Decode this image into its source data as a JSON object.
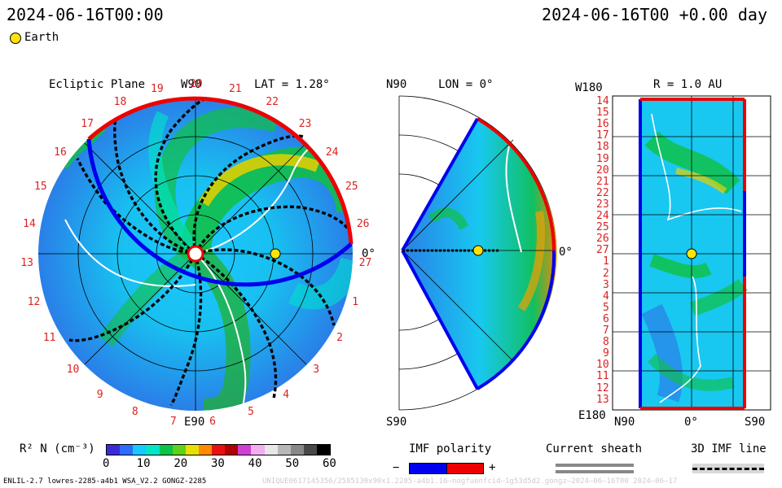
{
  "header": {
    "time_left": "2024-06-16T00:00",
    "time_right": "2024-06-16T00 +0.00 day"
  },
  "legend": {
    "earth_label": "Earth",
    "earth_color": "#ffe400"
  },
  "ecliptic": {
    "title": "Ecliptic Plane",
    "top_label": "W90",
    "bottom_label": "E90",
    "right_label": "0°",
    "lat_label": "LAT = 1.28°",
    "rotation_numbers": [
      "20",
      "21",
      "22",
      "23",
      "24",
      "25",
      "26",
      "27",
      "1",
      "2",
      "3",
      "4",
      "5",
      "6",
      "7",
      "8",
      "9",
      "10",
      "11",
      "12",
      "13",
      "14",
      "15",
      "16",
      "17",
      "18",
      "19"
    ]
  },
  "meridional": {
    "top_label": "N90",
    "bottom_label": "S90",
    "lon_label": "LON = 0°",
    "right_label": "0°"
  },
  "radial_map": {
    "top_left_label": "W180",
    "bottom_left_label": "E180",
    "title": "R = 1.0 AU",
    "x_labels": [
      "N90",
      "0°",
      "S90"
    ],
    "y_labels": [
      "14",
      "15",
      "16",
      "17",
      "18",
      "19",
      "20",
      "21",
      "22",
      "23",
      "24",
      "25",
      "26",
      "27",
      "1",
      "2",
      "3",
      "4",
      "5",
      "6",
      "7",
      "8",
      "9",
      "10",
      "11",
      "12",
      "13"
    ]
  },
  "colorbar": {
    "label": "R² N (cm⁻³)",
    "ticks": [
      "0",
      "10",
      "20",
      "30",
      "40",
      "50",
      "60"
    ],
    "colors": [
      "#3a2bd9",
      "#2b6cff",
      "#18c8ff",
      "#00e6c8",
      "#08c448",
      "#60d018",
      "#e8e000",
      "#ff8a00",
      "#e81010",
      "#b00000",
      "#d040d0",
      "#f0b0f0",
      "#e8e8e8",
      "#b8b8b8",
      "#888888",
      "#484848",
      "#000000"
    ]
  },
  "imf": {
    "title": "IMF polarity",
    "minus": "−",
    "plus": "+",
    "neg_color": "#0000ee",
    "pos_color": "#ee0000"
  },
  "sheath": {
    "title": "Current sheath"
  },
  "imf_line": {
    "title": "3D IMF line"
  },
  "footer": {
    "model_info": "ENLIL-2.7 lowres-2285-a4b1 WSA_V2.2 GONGZ-2285",
    "run_id": "UNIQUE0617145356/2585130x90x1.2285-a4b1.16—nogfuenfcid—1g53d5d2.gongz—2024—06—16T00  2024—06—17"
  }
}
